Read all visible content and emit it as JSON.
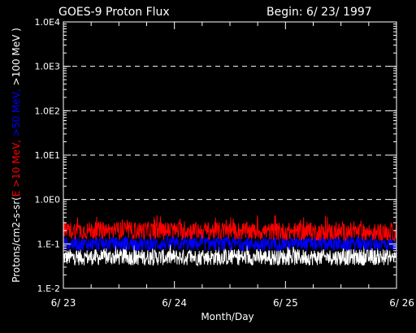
{
  "chart_data": {
    "type": "line",
    "title": "GOES-9 Proton Flux",
    "begin_label": "Begin: 6/ 23/ 1997",
    "xlabel": "Month/Day",
    "ylabel_parts": [
      {
        "text": "Protons/cm2-s-sr(",
        "color": "#ffffff"
      },
      {
        "text": "E >10 MeV, ",
        "color": "#ff0000"
      },
      {
        "text": ">50 MeV, ",
        "color": "#0000ff"
      },
      {
        "text": ">100 MeV )",
        "color": "#ffffff"
      }
    ],
    "y_scale": "log",
    "ylim": [
      0.01,
      10000
    ],
    "y_ticks": [
      {
        "value": 0.01,
        "label": "1.E-2"
      },
      {
        "value": 0.1,
        "label": "1.E-1"
      },
      {
        "value": 1,
        "label": "1.0E0"
      },
      {
        "value": 10,
        "label": "1.0E1"
      },
      {
        "value": 100,
        "label": "1.0E2"
      },
      {
        "value": 1000,
        "label": "1.0E3"
      },
      {
        "value": 10000,
        "label": "1.0E4"
      }
    ],
    "gridlines_y": [
      1,
      10,
      100,
      1000
    ],
    "xlim": [
      "1997-06-23",
      "1997-06-26"
    ],
    "x_ticks": [
      {
        "value": "1997-06-23",
        "label": "6/ 23"
      },
      {
        "value": "1997-06-24",
        "label": "6/ 24"
      },
      {
        "value": "1997-06-25",
        "label": "6/ 25"
      },
      {
        "value": "1997-06-26",
        "label": "6/ 26"
      }
    ],
    "series": [
      {
        "name": "E >10 MeV",
        "color": "#ff0000",
        "x": [
          "1997-06-23",
          "1997-06-24",
          "1997-06-25",
          "1997-06-26"
        ],
        "y": [
          0.2,
          0.2,
          0.19,
          0.18
        ],
        "y_range": [
          0.12,
          0.45
        ]
      },
      {
        "name": ">50 MeV",
        "color": "#0000ff",
        "x": [
          "1997-06-23",
          "1997-06-24",
          "1997-06-25",
          "1997-06-26"
        ],
        "y": [
          0.1,
          0.1,
          0.1,
          0.1
        ],
        "y_range": [
          0.06,
          0.17
        ]
      },
      {
        "name": ">100 MeV",
        "color": "#ffffff",
        "x": [
          "1997-06-23",
          "1997-06-24",
          "1997-06-25",
          "1997-06-26"
        ],
        "y": [
          0.05,
          0.05,
          0.05,
          0.05
        ],
        "y_range": [
          0.03,
          0.1
        ]
      }
    ]
  }
}
